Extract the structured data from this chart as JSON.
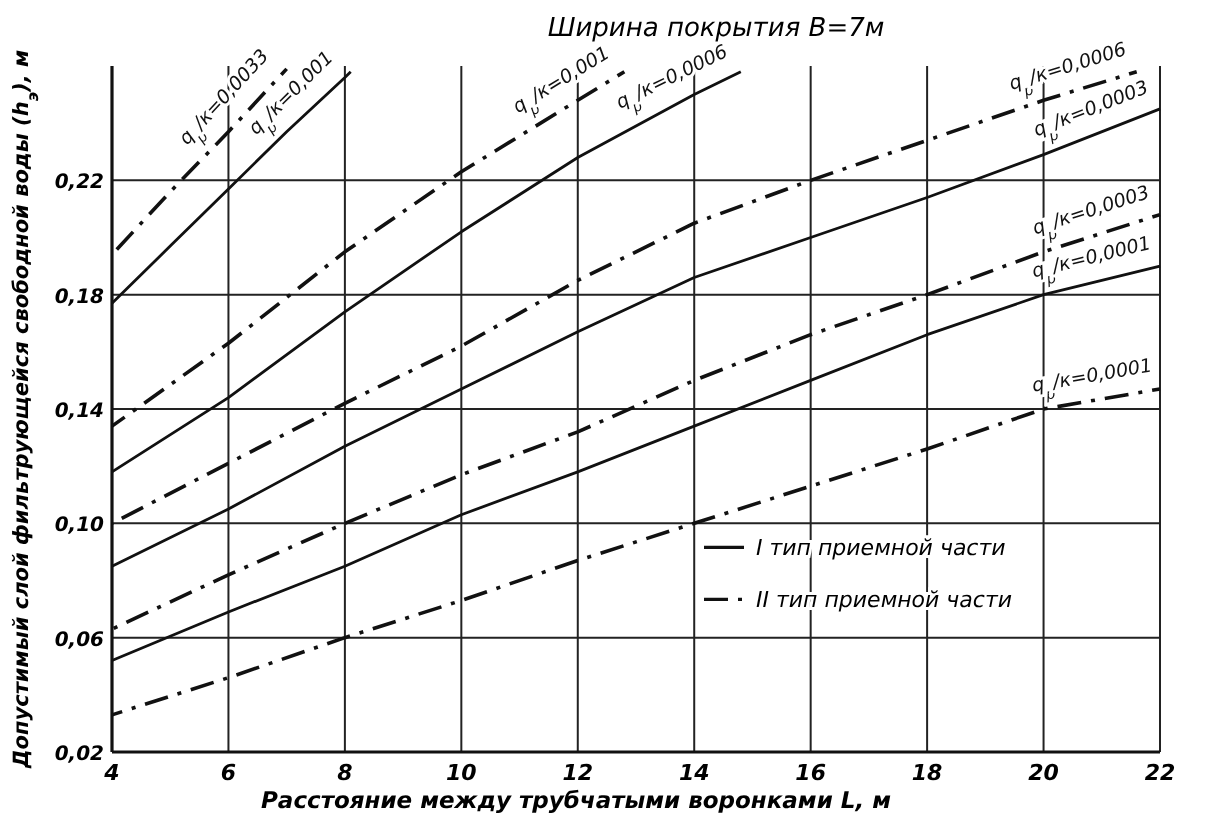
{
  "chart_data": {
    "type": "line",
    "title": "Ширина покрытия B=7м",
    "xlabel": "Расстояние между трубчатыми воронками L, м",
    "ylabel": "Допустимый слой фильтрующейся свободной воды (h$_{э}$), м",
    "annotations": [
      "I тип приемной части",
      "II тип приемной части"
    ],
    "xlim": [
      4,
      22
    ],
    "ylim": [
      0.02,
      0.26
    ],
    "xticks": [
      4,
      6,
      8,
      10,
      12,
      14,
      16,
      18,
      20,
      22
    ],
    "yticks": [
      {
        "value": 0.02,
        "label": "0,02"
      },
      {
        "value": 0.06,
        "label": "0,06"
      },
      {
        "value": 0.1,
        "label": "0,10"
      },
      {
        "value": 0.14,
        "label": "0,14"
      },
      {
        "value": 0.18,
        "label": "0,18"
      },
      {
        "value": 0.22,
        "label": "0,22"
      }
    ],
    "grid": true,
    "marker": "none",
    "series": [
      {
        "name": "q$_{р}$/к=0,0033",
        "color": "#111111",
        "line_style": "dashdot",
        "x": [
          4,
          5,
          6,
          7
        ],
        "values": [
          0.194,
          0.216,
          0.237,
          0.259
        ]
      },
      {
        "name": "q$_{р}$/к=0,001",
        "color": "#111111",
        "line_style": "solid",
        "x": [
          4,
          5,
          6,
          7,
          8,
          8.1
        ],
        "values": [
          0.177,
          0.197,
          0.217,
          0.237,
          0.256,
          0.258
        ]
      },
      {
        "name": "q$_{р}$/к=0,001",
        "color": "#111111",
        "line_style": "dashdot",
        "x": [
          4,
          6,
          8,
          10,
          12,
          12.8
        ],
        "values": [
          0.134,
          0.163,
          0.195,
          0.223,
          0.248,
          0.258
        ]
      },
      {
        "name": "q$_{р}$/к=0,0006",
        "color": "#111111",
        "line_style": "solid",
        "x": [
          4,
          6,
          8,
          10,
          12,
          14,
          14.8
        ],
        "values": [
          0.118,
          0.144,
          0.174,
          0.202,
          0.228,
          0.25,
          0.258
        ]
      },
      {
        "name": "q$_{р}$/к=0,0006",
        "color": "#111111",
        "line_style": "dashdot",
        "x": [
          4,
          6,
          8,
          10,
          12,
          14,
          16,
          18,
          20,
          21.6
        ],
        "values": [
          0.1,
          0.121,
          0.142,
          0.162,
          0.185,
          0.205,
          0.22,
          0.234,
          0.248,
          0.258
        ]
      },
      {
        "name": "q$_{р}$/к=0,0003",
        "color": "#111111",
        "line_style": "solid",
        "x": [
          4,
          6,
          8,
          10,
          12,
          14,
          16,
          18,
          20,
          22
        ],
        "values": [
          0.085,
          0.105,
          0.127,
          0.147,
          0.167,
          0.186,
          0.2,
          0.214,
          0.229,
          0.245
        ]
      },
      {
        "name": "q$_{р}$/к=0,0003",
        "color": "#111111",
        "line_style": "dashdot",
        "x": [
          4,
          6,
          8,
          10,
          12,
          14,
          16,
          18,
          20,
          22
        ],
        "values": [
          0.063,
          0.082,
          0.1,
          0.117,
          0.132,
          0.15,
          0.166,
          0.18,
          0.195,
          0.208
        ]
      },
      {
        "name": "q$_{р}$/к=0,0001",
        "color": "#111111",
        "line_style": "solid",
        "x": [
          4,
          6,
          8,
          10,
          12,
          14,
          16,
          18,
          20,
          22
        ],
        "values": [
          0.052,
          0.069,
          0.085,
          0.103,
          0.118,
          0.134,
          0.15,
          0.166,
          0.18,
          0.19
        ]
      },
      {
        "name": "q$_{р}$/к=0,0001",
        "color": "#111111",
        "line_style": "dashdot",
        "x": [
          4,
          6,
          8,
          10,
          12,
          14,
          16,
          18,
          20,
          22
        ],
        "values": [
          0.033,
          0.046,
          0.06,
          0.073,
          0.087,
          0.1,
          0.113,
          0.126,
          0.14,
          0.147
        ]
      }
    ]
  }
}
